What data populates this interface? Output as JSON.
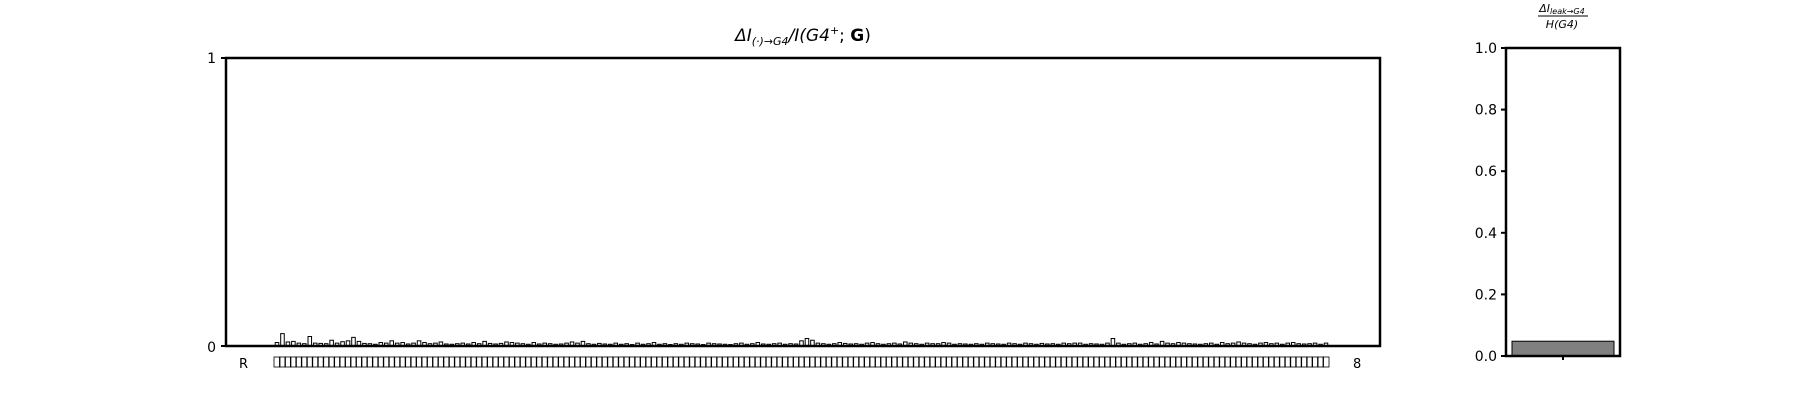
{
  "chart_data": [
    {
      "type": "bar",
      "title": "ΔI(·)→G4/I(G4⁺;G)",
      "title_main": "ΔI",
      "title_sub": "(·)→G4",
      "title_rest": "/I(G4",
      "title_sup": "+",
      "title_after": "; ",
      "title_bold": "G",
      "title_close": ")",
      "ylim": [
        0,
        1
      ],
      "yticks": [
        "0",
        "1"
      ],
      "xtick_first": "R",
      "xtick_last": "8",
      "bar_fill": "#ffffff",
      "bar_stroke": "#000000",
      "values": [
        0.012,
        0.043,
        0.014,
        0.016,
        0.01,
        0.008,
        0.033,
        0.01,
        0.009,
        0.008,
        0.02,
        0.01,
        0.015,
        0.018,
        0.03,
        0.016,
        0.009,
        0.008,
        0.006,
        0.012,
        0.01,
        0.018,
        0.01,
        0.012,
        0.007,
        0.01,
        0.018,
        0.012,
        0.008,
        0.01,
        0.014,
        0.007,
        0.006,
        0.008,
        0.01,
        0.007,
        0.012,
        0.008,
        0.016,
        0.009,
        0.007,
        0.009,
        0.014,
        0.012,
        0.01,
        0.008,
        0.006,
        0.012,
        0.007,
        0.01,
        0.008,
        0.006,
        0.007,
        0.01,
        0.014,
        0.01,
        0.016,
        0.008,
        0.006,
        0.009,
        0.007,
        0.006,
        0.01,
        0.006,
        0.008,
        0.005,
        0.01,
        0.006,
        0.008,
        0.012,
        0.006,
        0.008,
        0.005,
        0.008,
        0.006,
        0.01,
        0.008,
        0.007,
        0.005,
        0.01,
        0.008,
        0.007,
        0.006,
        0.005,
        0.008,
        0.01,
        0.006,
        0.008,
        0.012,
        0.007,
        0.006,
        0.008,
        0.01,
        0.006,
        0.008,
        0.007,
        0.018,
        0.026,
        0.02,
        0.01,
        0.008,
        0.006,
        0.008,
        0.012,
        0.009,
        0.007,
        0.008,
        0.006,
        0.01,
        0.012,
        0.008,
        0.006,
        0.008,
        0.01,
        0.007,
        0.014,
        0.01,
        0.008,
        0.006,
        0.01,
        0.008,
        0.008,
        0.012,
        0.01,
        0.006,
        0.008,
        0.007,
        0.006,
        0.008,
        0.006,
        0.01,
        0.008,
        0.007,
        0.006,
        0.01,
        0.008,
        0.006,
        0.01,
        0.008,
        0.006,
        0.009,
        0.007,
        0.008,
        0.006,
        0.01,
        0.008,
        0.01,
        0.01,
        0.006,
        0.008,
        0.007,
        0.006,
        0.01,
        0.026,
        0.01,
        0.006,
        0.008,
        0.01,
        0.006,
        0.008,
        0.012,
        0.007,
        0.016,
        0.01,
        0.008,
        0.012,
        0.01,
        0.008,
        0.007,
        0.006,
        0.008,
        0.01,
        0.006,
        0.012,
        0.008,
        0.01,
        0.014,
        0.01,
        0.008,
        0.006,
        0.01,
        0.012,
        0.008,
        0.01,
        0.006,
        0.01,
        0.012,
        0.008,
        0.007,
        0.008,
        0.01,
        0.006,
        0.01
      ]
    },
    {
      "type": "bar",
      "title": "ΔI_leak→G4 / H(G4)",
      "title_num_main": "ΔI",
      "title_num_sub": "leak→G4",
      "title_den": "H(G4)",
      "ylim": [
        0,
        1
      ],
      "yticks": [
        "0.0",
        "0.2",
        "0.4",
        "0.6",
        "0.8",
        "1.0"
      ],
      "values": [
        0.048
      ],
      "bar_fill": "#808080",
      "bar_stroke": "#000000"
    }
  ]
}
